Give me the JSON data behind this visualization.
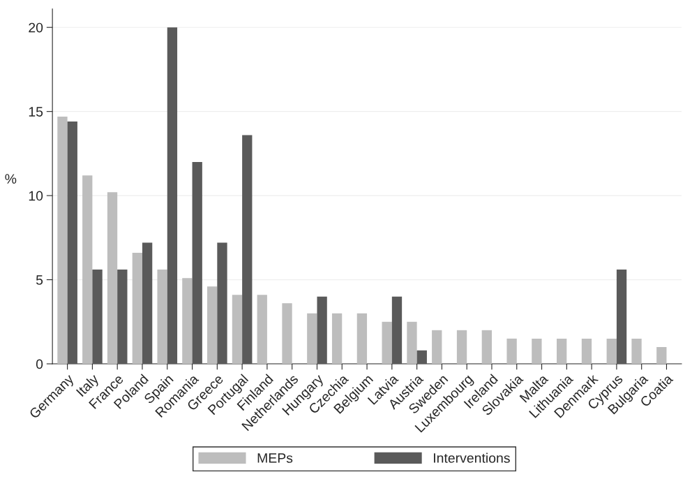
{
  "chart_data": {
    "type": "bar",
    "ylabel": "%",
    "categories": [
      "Germany",
      "Italy",
      "France",
      "Poland",
      "Spain",
      "Romania",
      "Greece",
      "Portugal",
      "Finland",
      "Netherlands",
      "Hungary",
      "Czechia",
      "Belgium",
      "Latvia",
      "Austria",
      "Sweden",
      "Luxembourg",
      "Ireland",
      "Slovakia",
      "Malta",
      "Lithuania",
      "Denmark",
      "Cyprus",
      "Bulgaria",
      "Coatia"
    ],
    "series": [
      {
        "name": "MEPs",
        "color": "#bdbdbd",
        "values": [
          14.7,
          11.2,
          10.2,
          6.6,
          5.6,
          5.1,
          4.6,
          4.1,
          4.1,
          3.6,
          3.0,
          3.0,
          3.0,
          2.5,
          2.5,
          2.0,
          2.0,
          2.0,
          1.5,
          1.5,
          1.5,
          1.5,
          1.5,
          1.5,
          1.0
        ]
      },
      {
        "name": "Interventions",
        "color": "#5a5a5a",
        "values": [
          14.4,
          5.6,
          5.6,
          7.2,
          20.0,
          12.0,
          7.2,
          13.6,
          null,
          null,
          4.0,
          null,
          null,
          4.0,
          0.8,
          null,
          null,
          null,
          null,
          null,
          null,
          null,
          5.6,
          null,
          null
        ]
      }
    ],
    "ylim": [
      0,
      21.1
    ],
    "yticks": [
      0,
      5,
      10,
      15,
      20
    ],
    "grid": "y",
    "legend": "bottom"
  }
}
